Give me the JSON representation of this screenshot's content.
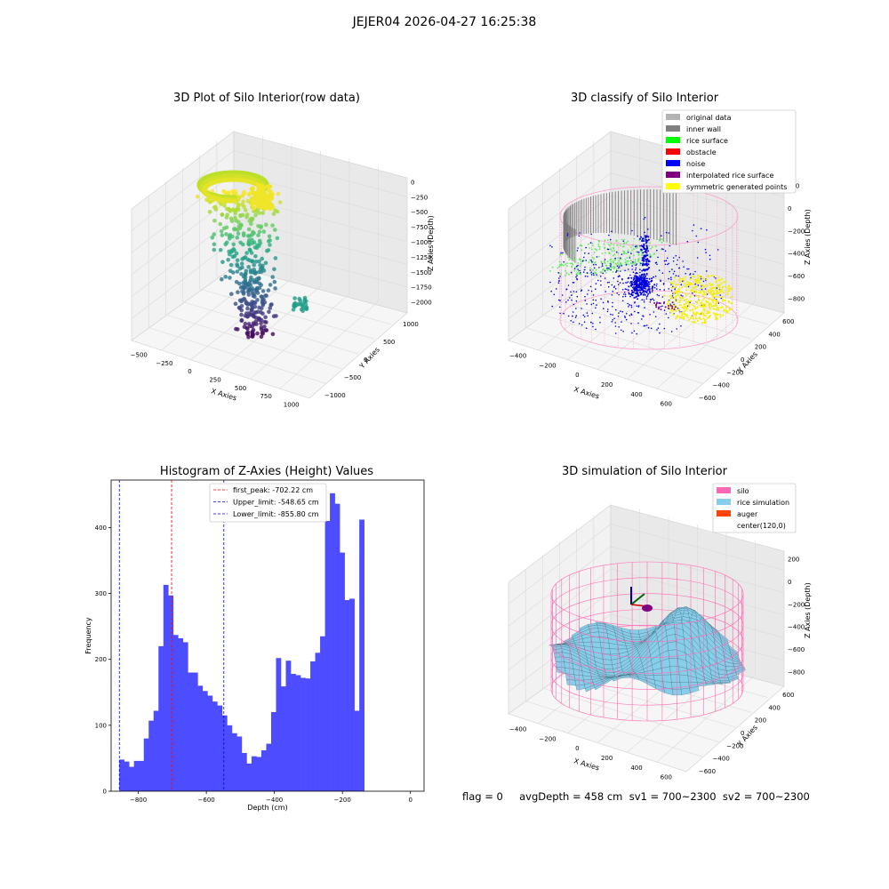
{
  "figure": {
    "suptitle": "JEJER04 2026-04-27 16:25:38",
    "footer": "flag = 0     avgDepth = 458 cm  sv1 = 700~2300  sv2 = 700~2300"
  },
  "chart_data": [
    {
      "type": "scatter",
      "projection": "3d",
      "title": "3D Plot of Silo Interior(row data)",
      "xlabel": "X Axies",
      "ylabel": "Y Axies",
      "zlabel": "Z Axies (Depth)",
      "xticks": [
        "−500",
        "−250",
        "0",
        "250",
        "500",
        "750",
        "1000"
      ],
      "yticks": [
        "−1000",
        "−500",
        "0",
        "500",
        "1000"
      ],
      "zticks": [
        "0",
        "−250",
        "−500",
        "−750",
        "−1000",
        "−1250",
        "−1500",
        "−1750",
        "−2000"
      ],
      "colormap": "viridis",
      "xlim": [
        -550,
        1150
      ],
      "ylim": [
        -1150,
        1050
      ],
      "zlim": [
        -2100,
        100
      ]
    },
    {
      "type": "scatter",
      "projection": "3d",
      "title": "3D classify of Silo Interior",
      "zlabel": "Z Axies (Depth)",
      "xlabel": "X Axies",
      "ylabel": "Y Axies",
      "xticks": [
        "−400",
        "−200",
        "0",
        "200",
        "400",
        "600"
      ],
      "yticks": [
        "−600",
        "−400",
        "−200",
        "0",
        "200",
        "400",
        "600"
      ],
      "zticks": [
        "200",
        "0",
        "−200",
        "−400",
        "−600",
        "−800"
      ],
      "legend_position": "upper right",
      "legend": [
        {
          "label": "original data",
          "color": "#b3b3b3"
        },
        {
          "label": "inner wall",
          "color": "#808080"
        },
        {
          "label": "rice surface",
          "color": "#00ff00"
        },
        {
          "label": "obstacle",
          "color": "#ff0000"
        },
        {
          "label": "noise",
          "color": "#0000ff"
        },
        {
          "label": "interpolated rice surface",
          "color": "#800080"
        },
        {
          "label": "symmetric generated points",
          "color": "#ffff00"
        }
      ],
      "wire_color": "#ff9ccc"
    },
    {
      "type": "bar",
      "title": "Histogram of Z-Axies (Height) Values",
      "xlabel": "Depth (cm)",
      "ylabel": "Frequency",
      "xlim": [
        -880,
        40
      ],
      "ylim": [
        0,
        472
      ],
      "xticks": [
        -800,
        -600,
        -400,
        -200,
        0
      ],
      "yticks": [
        0,
        100,
        200,
        300,
        400
      ],
      "bar_color": "#4d4dff",
      "bin_start": -856,
      "bin_width": 14.4,
      "values": [
        48,
        45,
        37,
        46,
        46,
        80,
        107,
        122,
        220,
        313,
        297,
        237,
        232,
        226,
        180,
        180,
        160,
        152,
        145,
        136,
        130,
        115,
        100,
        88,
        83,
        58,
        42,
        53,
        52,
        62,
        72,
        120,
        202,
        159,
        198,
        178,
        176,
        172,
        171,
        197,
        210,
        235,
        410,
        452,
        436,
        362,
        290,
        292,
        122,
        412
      ],
      "vlines": [
        {
          "label": "first_peak: -702.22 cm",
          "x": -702.22,
          "color": "#ff0000"
        },
        {
          "label": "Upper_limit: -548.65 cm",
          "x": -548.65,
          "color": "#0000ff"
        },
        {
          "label": "Lower_limit: -855.80 cm",
          "x": -855.8,
          "color": "#0000ff"
        }
      ]
    },
    {
      "type": "surface",
      "projection": "3d",
      "title": "3D simulation of Silo Interior",
      "xlabel": "X Axies",
      "ylabel": "Y Axies",
      "zlabel": "Z Axies (Depth)",
      "xticks": [
        "−400",
        "−200",
        "0",
        "200",
        "400",
        "600"
      ],
      "yticks": [
        "−600",
        "−400",
        "−200",
        "0",
        "200",
        "400",
        "600"
      ],
      "zticks": [
        "200",
        "0",
        "−200",
        "−400",
        "−600",
        "−800"
      ],
      "legend_position": "upper right",
      "legend": [
        {
          "label": "silo",
          "color": "#ff69b4"
        },
        {
          "label": "rice simulation",
          "color": "#87ceeb"
        },
        {
          "label": "auger",
          "color": "#ff4500"
        },
        {
          "label": "center(120,0)",
          "color": "#ffffff"
        }
      ]
    }
  ]
}
